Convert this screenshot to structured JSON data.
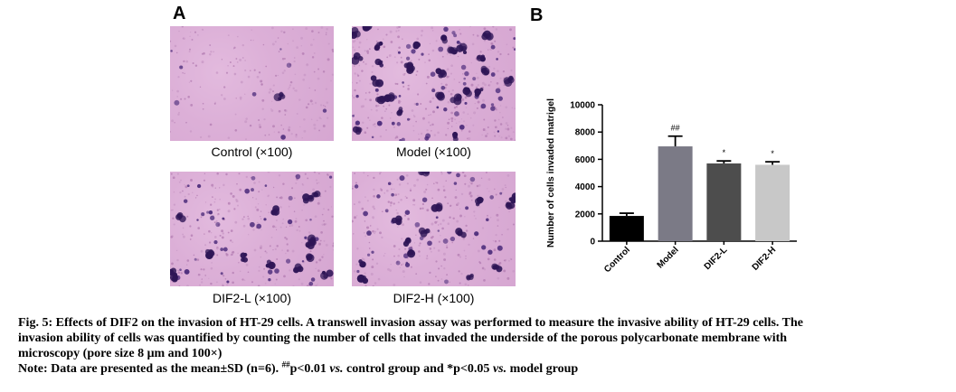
{
  "figure": {
    "panel_a_label": "A",
    "panel_b_label": "B",
    "micrographs": [
      {
        "caption": "Control (×100)",
        "density": "low"
      },
      {
        "caption": "Model (×100)",
        "density": "high"
      },
      {
        "caption": "DIF2-L (×100)",
        "density": "medium"
      },
      {
        "caption": "DIF2-H (×100)",
        "density": "medium"
      }
    ],
    "stain_colors": {
      "background": "#dcb0d8",
      "cells": "#4a2a7a",
      "dark_cells": "#2e1556"
    }
  },
  "chart_data": {
    "type": "bar",
    "categories": [
      "Control",
      "Model",
      "DIF2-L",
      "DIF2-H"
    ],
    "values": [
      1850,
      6950,
      5700,
      5600
    ],
    "errors": [
      200,
      750,
      180,
      220
    ],
    "significance": [
      "",
      "##",
      "*",
      "*"
    ],
    "colors": [
      "#000000",
      "#7b7a86",
      "#4d4d4d",
      "#c8c8c8"
    ],
    "ylabel": "Number of cells invaded matrigel",
    "ylim": [
      0,
      10000
    ],
    "yticks": [
      0,
      2000,
      4000,
      6000,
      8000,
      10000
    ],
    "ytick_labels": [
      "0",
      "2000",
      "4000",
      "6000",
      "8000",
      "10000"
    ]
  },
  "caption": {
    "line1": "Fig. 5: Effects of DIF2 on the invasion of HT-29 cells. A transwell invasion assay was performed to measure the invasive ability of HT-29 cells. The",
    "line2": "invasion ability of cells was quantified by counting the number of cells that invaded the underside of the porous polycarbonate membrane with",
    "line3": "microscopy (pore size 8 μm and 100×)",
    "note_prefix": "Note: Data are presented as the mean±SD (n=6). ",
    "note_sup1": "##",
    "note_p1": "p<0.01 ",
    "note_vs1": "vs.",
    "note_mid": " control group and *p<0.05 ",
    "note_vs2": "vs.",
    "note_end": " model group"
  }
}
